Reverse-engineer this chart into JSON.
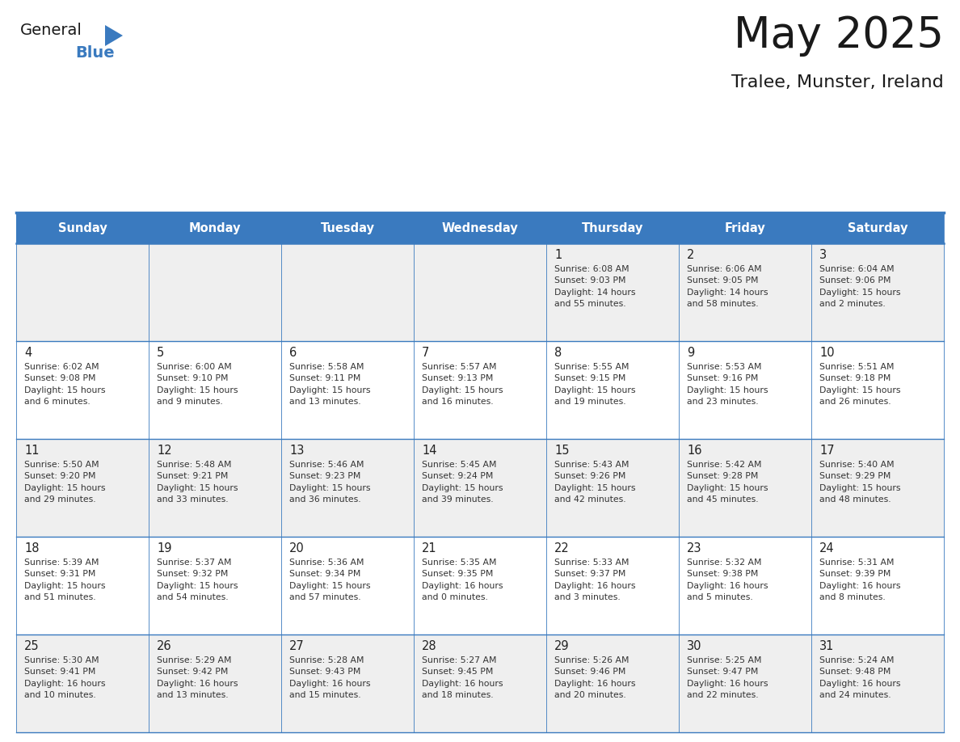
{
  "title": "May 2025",
  "subtitle": "Tralee, Munster, Ireland",
  "days_of_week": [
    "Sunday",
    "Monday",
    "Tuesday",
    "Wednesday",
    "Thursday",
    "Friday",
    "Saturday"
  ],
  "header_bg": "#3a7abf",
  "header_text": "#ffffff",
  "cell_bg_odd": "#efefef",
  "cell_bg_even": "#ffffff",
  "border_color": "#3a7abf",
  "text_color": "#333333",
  "day_num_color": "#222222",
  "logo_general_color": "#1a1a1a",
  "logo_blue_color": "#3a7abf",
  "title_color": "#1a1a1a",
  "subtitle_color": "#1a1a1a",
  "weeks": [
    [
      {
        "day": "",
        "info": ""
      },
      {
        "day": "",
        "info": ""
      },
      {
        "day": "",
        "info": ""
      },
      {
        "day": "",
        "info": ""
      },
      {
        "day": "1",
        "info": "Sunrise: 6:08 AM\nSunset: 9:03 PM\nDaylight: 14 hours\nand 55 minutes."
      },
      {
        "day": "2",
        "info": "Sunrise: 6:06 AM\nSunset: 9:05 PM\nDaylight: 14 hours\nand 58 minutes."
      },
      {
        "day": "3",
        "info": "Sunrise: 6:04 AM\nSunset: 9:06 PM\nDaylight: 15 hours\nand 2 minutes."
      }
    ],
    [
      {
        "day": "4",
        "info": "Sunrise: 6:02 AM\nSunset: 9:08 PM\nDaylight: 15 hours\nand 6 minutes."
      },
      {
        "day": "5",
        "info": "Sunrise: 6:00 AM\nSunset: 9:10 PM\nDaylight: 15 hours\nand 9 minutes."
      },
      {
        "day": "6",
        "info": "Sunrise: 5:58 AM\nSunset: 9:11 PM\nDaylight: 15 hours\nand 13 minutes."
      },
      {
        "day": "7",
        "info": "Sunrise: 5:57 AM\nSunset: 9:13 PM\nDaylight: 15 hours\nand 16 minutes."
      },
      {
        "day": "8",
        "info": "Sunrise: 5:55 AM\nSunset: 9:15 PM\nDaylight: 15 hours\nand 19 minutes."
      },
      {
        "day": "9",
        "info": "Sunrise: 5:53 AM\nSunset: 9:16 PM\nDaylight: 15 hours\nand 23 minutes."
      },
      {
        "day": "10",
        "info": "Sunrise: 5:51 AM\nSunset: 9:18 PM\nDaylight: 15 hours\nand 26 minutes."
      }
    ],
    [
      {
        "day": "11",
        "info": "Sunrise: 5:50 AM\nSunset: 9:20 PM\nDaylight: 15 hours\nand 29 minutes."
      },
      {
        "day": "12",
        "info": "Sunrise: 5:48 AM\nSunset: 9:21 PM\nDaylight: 15 hours\nand 33 minutes."
      },
      {
        "day": "13",
        "info": "Sunrise: 5:46 AM\nSunset: 9:23 PM\nDaylight: 15 hours\nand 36 minutes."
      },
      {
        "day": "14",
        "info": "Sunrise: 5:45 AM\nSunset: 9:24 PM\nDaylight: 15 hours\nand 39 minutes."
      },
      {
        "day": "15",
        "info": "Sunrise: 5:43 AM\nSunset: 9:26 PM\nDaylight: 15 hours\nand 42 minutes."
      },
      {
        "day": "16",
        "info": "Sunrise: 5:42 AM\nSunset: 9:28 PM\nDaylight: 15 hours\nand 45 minutes."
      },
      {
        "day": "17",
        "info": "Sunrise: 5:40 AM\nSunset: 9:29 PM\nDaylight: 15 hours\nand 48 minutes."
      }
    ],
    [
      {
        "day": "18",
        "info": "Sunrise: 5:39 AM\nSunset: 9:31 PM\nDaylight: 15 hours\nand 51 minutes."
      },
      {
        "day": "19",
        "info": "Sunrise: 5:37 AM\nSunset: 9:32 PM\nDaylight: 15 hours\nand 54 minutes."
      },
      {
        "day": "20",
        "info": "Sunrise: 5:36 AM\nSunset: 9:34 PM\nDaylight: 15 hours\nand 57 minutes."
      },
      {
        "day": "21",
        "info": "Sunrise: 5:35 AM\nSunset: 9:35 PM\nDaylight: 16 hours\nand 0 minutes."
      },
      {
        "day": "22",
        "info": "Sunrise: 5:33 AM\nSunset: 9:37 PM\nDaylight: 16 hours\nand 3 minutes."
      },
      {
        "day": "23",
        "info": "Sunrise: 5:32 AM\nSunset: 9:38 PM\nDaylight: 16 hours\nand 5 minutes."
      },
      {
        "day": "24",
        "info": "Sunrise: 5:31 AM\nSunset: 9:39 PM\nDaylight: 16 hours\nand 8 minutes."
      }
    ],
    [
      {
        "day": "25",
        "info": "Sunrise: 5:30 AM\nSunset: 9:41 PM\nDaylight: 16 hours\nand 10 minutes."
      },
      {
        "day": "26",
        "info": "Sunrise: 5:29 AM\nSunset: 9:42 PM\nDaylight: 16 hours\nand 13 minutes."
      },
      {
        "day": "27",
        "info": "Sunrise: 5:28 AM\nSunset: 9:43 PM\nDaylight: 16 hours\nand 15 minutes."
      },
      {
        "day": "28",
        "info": "Sunrise: 5:27 AM\nSunset: 9:45 PM\nDaylight: 16 hours\nand 18 minutes."
      },
      {
        "day": "29",
        "info": "Sunrise: 5:26 AM\nSunset: 9:46 PM\nDaylight: 16 hours\nand 20 minutes."
      },
      {
        "day": "30",
        "info": "Sunrise: 5:25 AM\nSunset: 9:47 PM\nDaylight: 16 hours\nand 22 minutes."
      },
      {
        "day": "31",
        "info": "Sunrise: 5:24 AM\nSunset: 9:48 PM\nDaylight: 16 hours\nand 24 minutes."
      }
    ]
  ]
}
